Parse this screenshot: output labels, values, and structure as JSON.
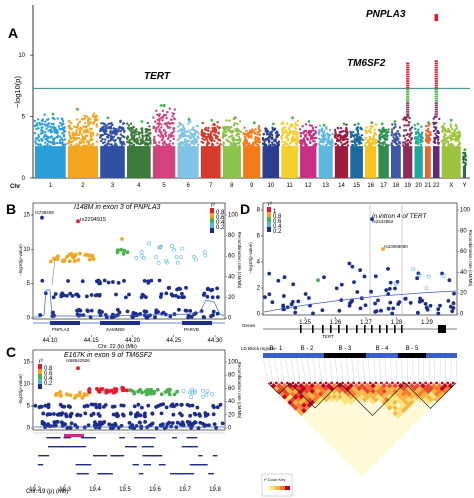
{
  "panels": {
    "a": {
      "letter": "A"
    },
    "b": {
      "letter": "B"
    },
    "c": {
      "letter": "C"
    },
    "d": {
      "letter": "D"
    }
  },
  "colors": {
    "threshold_line": "#2b8a86",
    "sig_hit": "#e8192c",
    "suggestive": "#3cb84a",
    "chrom_palette": [
      "#2b9ed8",
      "#f2a51f",
      "#2f4fa3",
      "#3b7a3b",
      "#d1427e",
      "#7fc3e6",
      "#d63a2a",
      "#8bc34a",
      "#f07d1a",
      "#2b3f8c",
      "#f3d02a",
      "#c92f85",
      "#5bb8e0",
      "#9e1b3f",
      "#1a6a9c",
      "#f7c31e",
      "#2f8d4e",
      "#3e56a6",
      "#8c2d59",
      "#20aa9d",
      "#ec6528",
      "#5f2a78",
      "#9cc43e",
      "#2e6b44"
    ],
    "ld": [
      "#1c2e8c",
      "#57b5e6",
      "#4caf50",
      "#f5a623",
      "#e8192c"
    ],
    "hline_blue": "#3a5fcd"
  },
  "chart_data": [
    {
      "id": "manhattan",
      "type": "scatter",
      "title": "",
      "ylabel": "−log10(p)",
      "xlabel": "Chr",
      "ylim": [
        0,
        14
      ],
      "yticks": [
        0,
        5,
        10
      ],
      "categories": [
        "1",
        "2",
        "3",
        "4",
        "5",
        "6",
        "7",
        "8",
        "9",
        "10",
        "11",
        "12",
        "13",
        "14",
        "15",
        "16",
        "17",
        "18",
        "19",
        "20",
        "21",
        "22",
        "X",
        "Y"
      ],
      "threshold": 7.3,
      "peak_values": [
        5.2,
        5.6,
        4.9,
        4.6,
        5.9,
        4.8,
        4.7,
        4.9,
        4.5,
        4.4,
        4.9,
        4.6,
        4.3,
        4.4,
        4.4,
        4.5,
        4.4,
        4.6,
        9.4,
        4.4,
        4.5,
        13.1,
        4.7,
        2.3
      ],
      "annotations": [
        {
          "label": "PNPLA3",
          "chr": "22",
          "y": 13.1
        },
        {
          "label": "TM6SF2",
          "chr": "19",
          "y": 9.4
        },
        {
          "label": "TERT",
          "chr": "5",
          "y": 5.9
        }
      ]
    },
    {
      "id": "regional_pnpla3",
      "type": "scatter",
      "title": "I148M in exon 3 of PNPLA3",
      "snp_labels": [
        "rs738409",
        "rs2294915"
      ],
      "ylabel": "−log10(p-value)",
      "ylabel_right": "Recombination rate (cM/Mb)",
      "yticks": [
        0,
        5,
        10,
        15
      ],
      "yticks_right": [
        0,
        20,
        40,
        60,
        80,
        100
      ],
      "xticks": [
        "44.10",
        "44.15",
        "44.20",
        "44.25",
        "44.30"
      ],
      "xlabel": "Chr. 22 (b) (Mb)",
      "genes": [
        "PNPLA3",
        "SAMM50",
        "PARVB"
      ],
      "legend": {
        "title": "r²",
        "ticks": [
          "0.8",
          "0.6",
          "0.4",
          "0.2"
        ]
      }
    },
    {
      "id": "regional_tm6sf2",
      "type": "scatter",
      "title": "E167K in exon 9 of TM6SF2",
      "snp_labels": [
        "rs58542926"
      ],
      "ylabel": "−log10(p-value)",
      "ylabel_right": "Recombination rate (cM/Mb)",
      "yticks": [
        0,
        5,
        10,
        15
      ],
      "yticks_right": [
        0,
        20,
        40,
        60,
        80,
        100
      ],
      "xticks": [
        "19.2",
        "19.3",
        "19.4",
        "19.5",
        "19.6",
        "19.7",
        "19.8"
      ],
      "xlabel": "Chr. 19 (p) (Mb)",
      "legend": {
        "title": "r²",
        "ticks": [
          "0.8",
          "0.6",
          "0.4",
          "0.2"
        ]
      }
    },
    {
      "id": "regional_tert",
      "type": "scatter",
      "title": "in intron 4 of TERT",
      "snp_labels": [
        "rs2242652",
        "rs10069690"
      ],
      "ylabel": "−log10(p-value)",
      "ylabel_right": "Recombination rate (cM/Mb)",
      "yticks": [
        0,
        2,
        4,
        6,
        8
      ],
      "yticks_right": [
        0,
        20,
        40,
        60,
        80,
        100
      ],
      "xticks": [
        "1.25",
        "1.26",
        "1.27",
        "1.28",
        "1.29"
      ],
      "genes_label": "Genes",
      "gene": "TERT",
      "ld_blocks_label": "LD Block regions",
      "blocks": [
        "B - 1",
        "B - 2",
        "B - 3",
        "B - 4",
        "B - 5"
      ],
      "heatmap_legend": "r² Color Key",
      "legend": {
        "title": "r²",
        "ticks": [
          "1",
          "0.8",
          "0.6",
          "0.4",
          "0.2"
        ]
      }
    }
  ]
}
